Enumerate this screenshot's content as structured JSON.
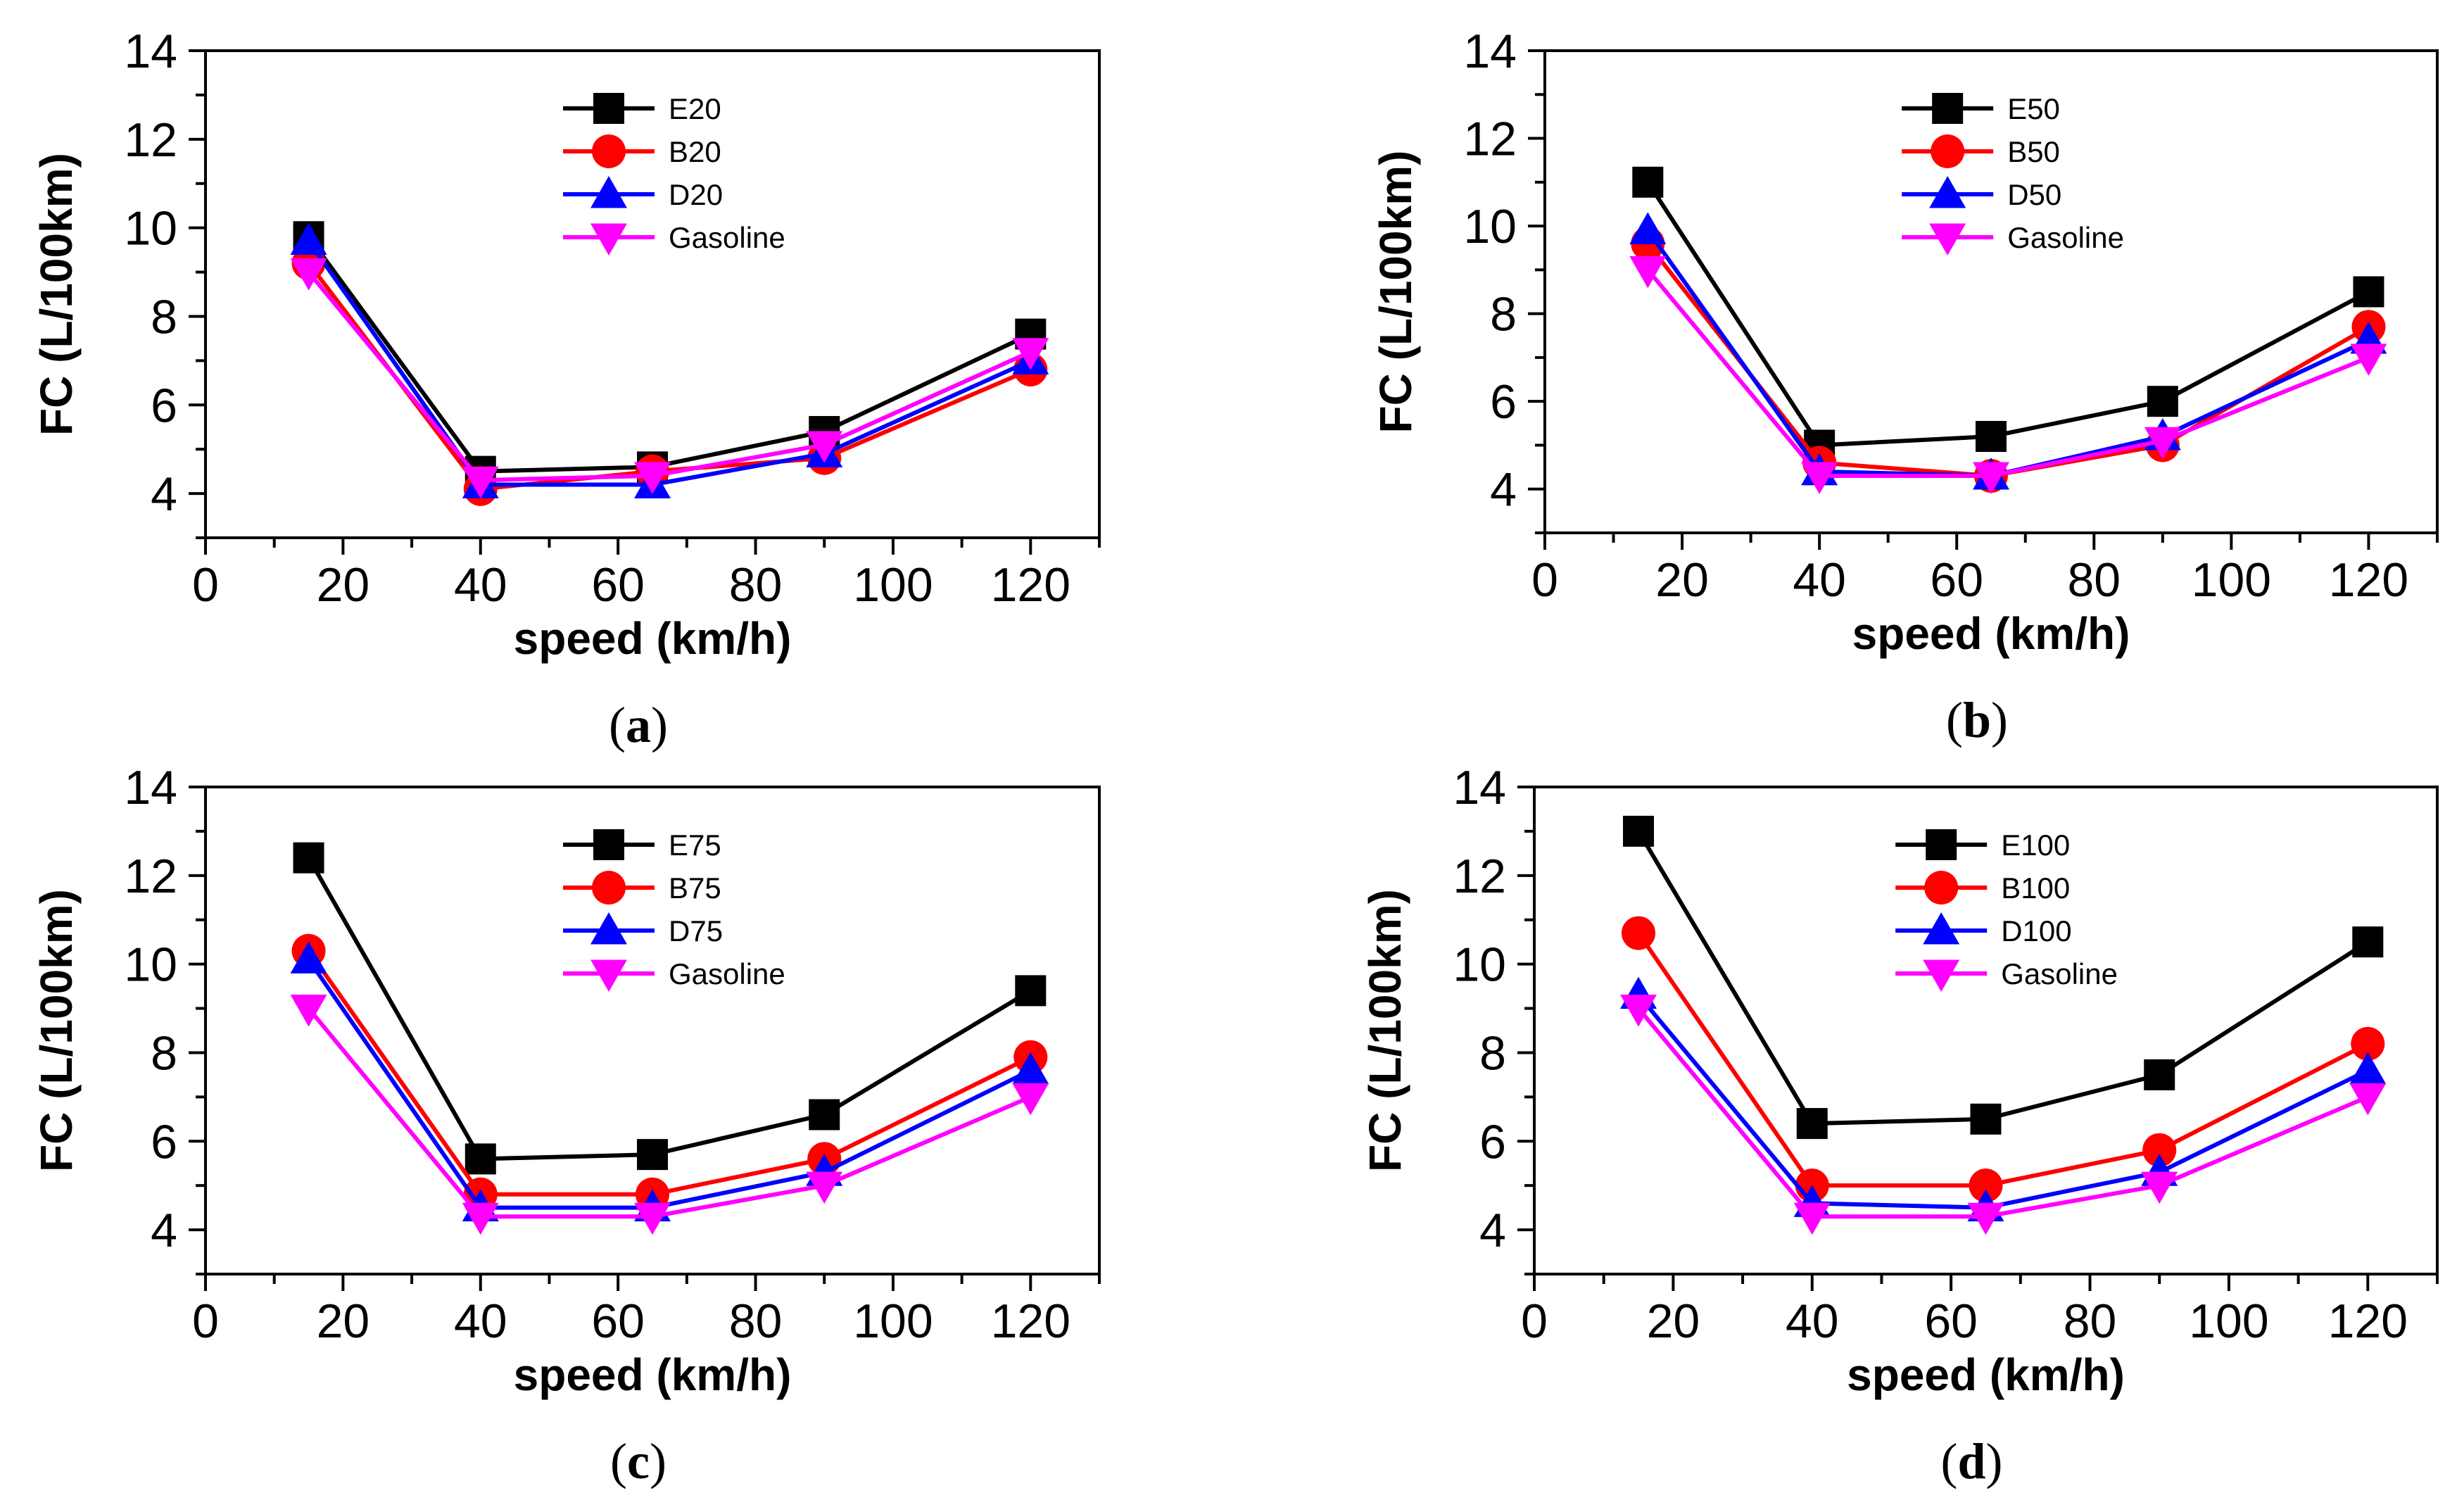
{
  "chart_data": [
    {
      "type": "line",
      "caption": "a",
      "xlabel": "speed (km/h)",
      "ylabel": "FC (L/100km)",
      "xlim": [
        0,
        130
      ],
      "ylim": [
        3,
        14
      ],
      "xticks": [
        0,
        20,
        40,
        60,
        80,
        100,
        120
      ],
      "yticks": [
        4,
        6,
        8,
        10,
        12,
        14
      ],
      "x": [
        15,
        40,
        65,
        90,
        120
      ],
      "legend_position": "top-center",
      "series": [
        {
          "name": "E20",
          "color": "#000000",
          "marker": "square",
          "values": [
            9.8,
            4.5,
            4.6,
            5.4,
            7.6
          ]
        },
        {
          "name": "B20",
          "color": "#ff0000",
          "marker": "circle",
          "values": [
            9.2,
            4.1,
            4.5,
            4.8,
            6.8
          ]
        },
        {
          "name": "D20",
          "color": "#0000ff",
          "marker": "triangle-up",
          "values": [
            9.7,
            4.2,
            4.2,
            4.9,
            7.0
          ]
        },
        {
          "name": "Gasoline",
          "color": "#ff00ff",
          "marker": "triangle-down",
          "values": [
            9.0,
            4.3,
            4.4,
            5.1,
            7.2
          ]
        }
      ]
    },
    {
      "type": "line",
      "caption": "b",
      "xlabel": "speed (km/h)",
      "ylabel": "FC (L/100km)",
      "xlim": [
        0,
        130
      ],
      "ylim": [
        3,
        14
      ],
      "xticks": [
        0,
        20,
        40,
        60,
        80,
        100,
        120
      ],
      "yticks": [
        4,
        6,
        8,
        10,
        12,
        14
      ],
      "x": [
        15,
        40,
        65,
        90,
        120
      ],
      "legend_position": "top-center",
      "series": [
        {
          "name": "E50",
          "color": "#000000",
          "marker": "square",
          "values": [
            11.0,
            5.0,
            5.2,
            6.0,
            8.5
          ]
        },
        {
          "name": "B50",
          "color": "#ff0000",
          "marker": "circle",
          "values": [
            9.6,
            4.6,
            4.3,
            5.0,
            7.7
          ]
        },
        {
          "name": "D50",
          "color": "#0000ff",
          "marker": "triangle-up",
          "values": [
            9.9,
            4.4,
            4.3,
            5.2,
            7.4
          ]
        },
        {
          "name": "Gasoline",
          "color": "#ff00ff",
          "marker": "triangle-down",
          "values": [
            9.0,
            4.3,
            4.3,
            5.1,
            7.0
          ]
        }
      ]
    },
    {
      "type": "line",
      "caption": "c",
      "xlabel": "speed (km/h)",
      "ylabel": "FC (L/100km)",
      "xlim": [
        0,
        130
      ],
      "ylim": [
        3,
        14
      ],
      "xticks": [
        0,
        20,
        40,
        60,
        80,
        100,
        120
      ],
      "yticks": [
        4,
        6,
        8,
        10,
        12,
        14
      ],
      "x": [
        15,
        40,
        65,
        90,
        120
      ],
      "legend_position": "top-center",
      "series": [
        {
          "name": "E75",
          "color": "#000000",
          "marker": "square",
          "values": [
            12.4,
            5.6,
            5.7,
            6.6,
            9.4
          ]
        },
        {
          "name": "B75",
          "color": "#ff0000",
          "marker": "circle",
          "values": [
            10.3,
            4.8,
            4.8,
            5.6,
            7.9
          ]
        },
        {
          "name": "D75",
          "color": "#0000ff",
          "marker": "triangle-up",
          "values": [
            10.1,
            4.5,
            4.5,
            5.3,
            7.6
          ]
        },
        {
          "name": "Gasoline",
          "color": "#ff00ff",
          "marker": "triangle-down",
          "values": [
            9.0,
            4.3,
            4.3,
            5.0,
            7.0
          ]
        }
      ]
    },
    {
      "type": "line",
      "caption": "d",
      "xlabel": "speed (km/h)",
      "ylabel": "FC (L/100km)",
      "xlim": [
        0,
        130
      ],
      "ylim": [
        3,
        14
      ],
      "xticks": [
        0,
        20,
        40,
        60,
        80,
        100,
        120
      ],
      "yticks": [
        4,
        6,
        8,
        10,
        12,
        14
      ],
      "x": [
        15,
        40,
        65,
        90,
        120
      ],
      "legend_position": "top-center",
      "series": [
        {
          "name": "E100",
          "color": "#000000",
          "marker": "square",
          "values": [
            13.0,
            6.4,
            6.5,
            7.5,
            10.5
          ]
        },
        {
          "name": "B100",
          "color": "#ff0000",
          "marker": "circle",
          "values": [
            10.7,
            5.0,
            5.0,
            5.8,
            8.2
          ]
        },
        {
          "name": "D100",
          "color": "#0000ff",
          "marker": "triangle-up",
          "values": [
            9.3,
            4.6,
            4.5,
            5.3,
            7.6
          ]
        },
        {
          "name": "Gasoline",
          "color": "#ff00ff",
          "marker": "triangle-down",
          "values": [
            9.0,
            4.3,
            4.3,
            5.0,
            7.0
          ]
        }
      ]
    }
  ]
}
